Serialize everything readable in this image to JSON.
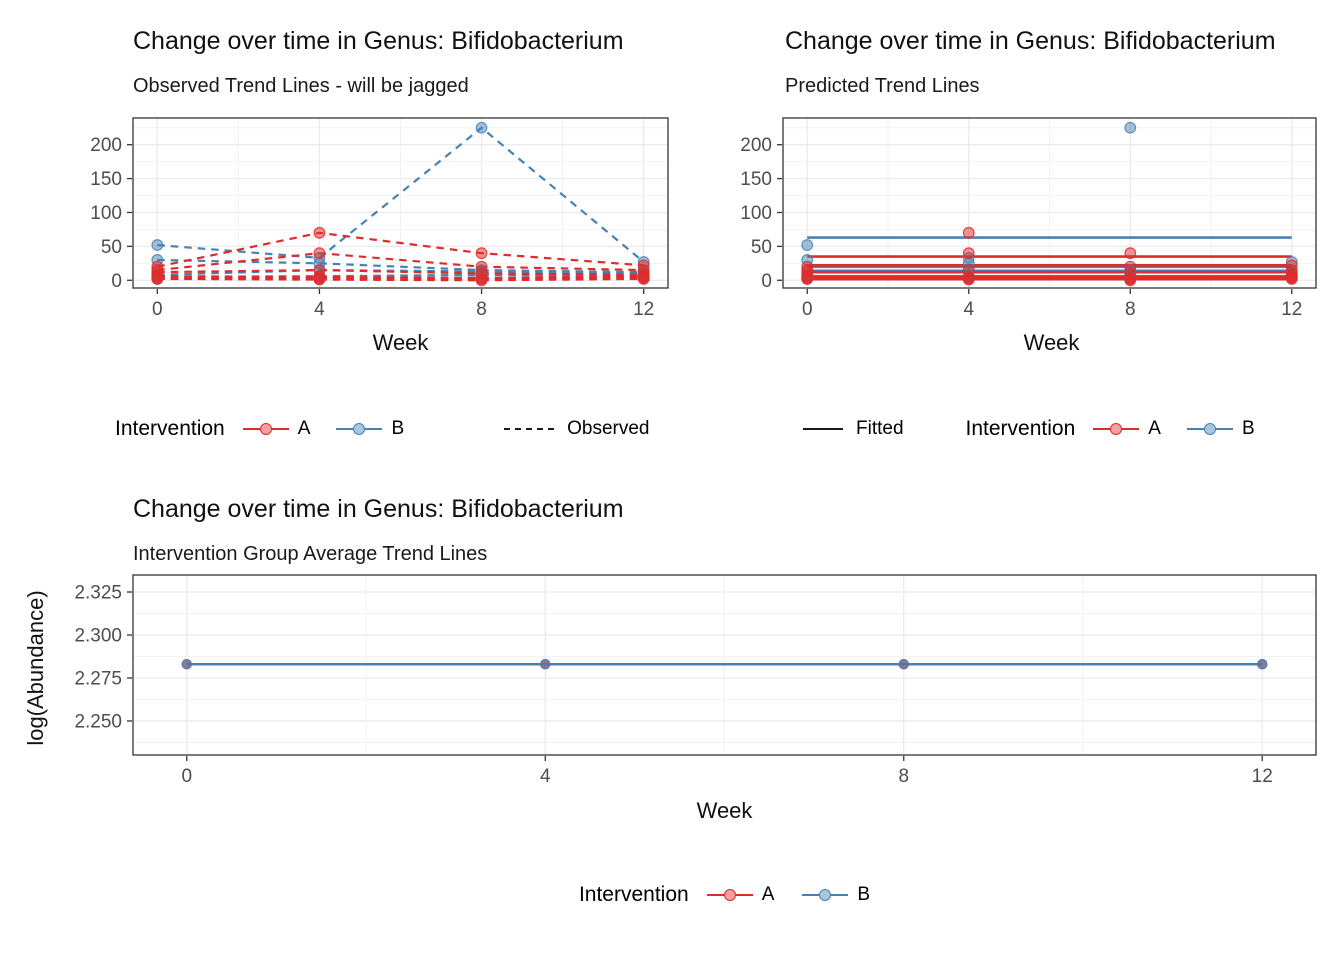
{
  "groups": {
    "A": {
      "label": "A",
      "color": "#e02b2b"
    },
    "B": {
      "label": "B",
      "color": "#4682b4"
    }
  },
  "style_colors": {
    "panel_border": "#333333",
    "grid_major": "#ebebeb",
    "grid_minor": "#f2f2f2",
    "tick_text": "#4d4d4d",
    "legend_line": "#1a1a1a"
  },
  "chart_data": [
    {
      "type": "line",
      "variant": "spaghetti-observed",
      "title": "Change over time in Genus: Bifidobacterium",
      "subtitle": "Observed Trend Lines - will be jagged",
      "xlabel": "Week",
      "legend": {
        "title": "Intervention",
        "items": [
          {
            "label": "A",
            "group": "A"
          },
          {
            "label": "B",
            "group": "B"
          }
        ],
        "linetype": {
          "label": "Observed"
        }
      },
      "axes": {
        "xlim": [
          -0.6,
          12.6
        ],
        "ylim": [
          -11.4,
          239.4
        ],
        "xticks": [
          {
            "v": 0,
            "label": "0"
          },
          {
            "v": 4,
            "label": "4"
          },
          {
            "v": 8,
            "label": "8"
          },
          {
            "v": 12,
            "label": "12"
          }
        ],
        "yticks": [
          {
            "v": 0,
            "label": "0"
          },
          {
            "v": 50,
            "label": "50"
          },
          {
            "v": 100,
            "label": "100"
          },
          {
            "v": 150,
            "label": "150"
          },
          {
            "v": 200,
            "label": "200"
          }
        ],
        "xminor": [
          2,
          6,
          10
        ],
        "yminor": [
          25,
          75,
          125,
          175,
          225
        ],
        "grid": true
      },
      "weeks": [
        0,
        4,
        8,
        12
      ],
      "series": [
        {
          "group": "B",
          "values": [
            52,
            33,
            225,
            27
          ]
        },
        {
          "group": "B",
          "values": [
            30,
            25,
            15,
            12
          ]
        },
        {
          "group": "B",
          "values": [
            8,
            15,
            13,
            10
          ]
        },
        {
          "group": "B",
          "values": [
            5,
            6,
            8,
            6
          ]
        },
        {
          "group": "B",
          "values": [
            2,
            3,
            4,
            3
          ]
        },
        {
          "group": "A",
          "values": [
            20,
            70,
            40,
            22
          ]
        },
        {
          "group": "A",
          "values": [
            15,
            40,
            20,
            15
          ]
        },
        {
          "group": "A",
          "values": [
            12,
            15,
            10,
            8
          ]
        },
        {
          "group": "A",
          "values": [
            6,
            5,
            3,
            6
          ]
        },
        {
          "group": "A",
          "values": [
            4,
            3,
            2,
            4
          ]
        },
        {
          "group": "A",
          "values": [
            2,
            1,
            0,
            2
          ]
        }
      ],
      "layout": {
        "plot": {
          "l": 78,
          "t": 13,
          "r": 613,
          "b": 183
        },
        "dash": "7.5 6",
        "point_r": 5.3
      }
    },
    {
      "type": "line",
      "variant": "fitted-horizontal",
      "title": "Change over time in Genus: Bifidobacterium",
      "subtitle": "Predicted Trend Lines",
      "xlabel": "Week",
      "legend": {
        "linetype": {
          "label": "Fitted"
        },
        "title": "Intervention",
        "items": [
          {
            "label": "A",
            "group": "A"
          },
          {
            "label": "B",
            "group": "B"
          }
        ]
      },
      "axes": {
        "xlim": [
          -0.6,
          12.6
        ],
        "ylim": [
          -11.4,
          239.4
        ],
        "xticks": [
          {
            "v": 0,
            "label": "0"
          },
          {
            "v": 4,
            "label": "4"
          },
          {
            "v": 8,
            "label": "8"
          },
          {
            "v": 12,
            "label": "12"
          }
        ],
        "yticks": [
          {
            "v": 0,
            "label": "0"
          },
          {
            "v": 50,
            "label": "50"
          },
          {
            "v": 100,
            "label": "100"
          },
          {
            "v": 150,
            "label": "150"
          },
          {
            "v": 200,
            "label": "200"
          }
        ],
        "xminor": [
          2,
          6,
          10
        ],
        "yminor": [
          25,
          75,
          125,
          175,
          225
        ],
        "grid": true
      },
      "weeks": [
        0,
        4,
        8,
        12
      ],
      "fitted": [
        {
          "group": "B",
          "value": 63
        },
        {
          "group": "B",
          "value": 20
        },
        {
          "group": "B",
          "value": 14
        },
        {
          "group": "B",
          "value": 6
        },
        {
          "group": "B",
          "value": 3
        },
        {
          "group": "A",
          "value": 35
        },
        {
          "group": "A",
          "value": 22
        },
        {
          "group": "A",
          "value": 12
        },
        {
          "group": "A",
          "value": 5
        },
        {
          "group": "A",
          "value": 3
        },
        {
          "group": "A",
          "value": 1.5
        }
      ],
      "series": [
        {
          "group": "B",
          "values": [
            52,
            33,
            225,
            27
          ]
        },
        {
          "group": "B",
          "values": [
            30,
            25,
            15,
            12
          ]
        },
        {
          "group": "B",
          "values": [
            8,
            15,
            13,
            10
          ]
        },
        {
          "group": "B",
          "values": [
            5,
            6,
            8,
            6
          ]
        },
        {
          "group": "B",
          "values": [
            2,
            3,
            4,
            3
          ]
        },
        {
          "group": "A",
          "values": [
            20,
            70,
            40,
            22
          ]
        },
        {
          "group": "A",
          "values": [
            15,
            40,
            20,
            15
          ]
        },
        {
          "group": "A",
          "values": [
            12,
            15,
            10,
            8
          ]
        },
        {
          "group": "A",
          "values": [
            6,
            5,
            3,
            6
          ]
        },
        {
          "group": "A",
          "values": [
            4,
            3,
            2,
            4
          ]
        },
        {
          "group": "A",
          "values": [
            2,
            1,
            0,
            2
          ]
        }
      ],
      "layout": {
        "plot": {
          "l": 73,
          "t": 13,
          "r": 606,
          "b": 183
        },
        "point_r": 5.3
      }
    },
    {
      "type": "line",
      "variant": "group-average-flat",
      "title": "Change over time in Genus: Bifidobacterium",
      "subtitle": "Intervention Group Average Trend Lines",
      "xlabel": "Week",
      "ylabel": "log(Abundance)",
      "legend": {
        "title": "Intervention",
        "items": [
          {
            "label": "A",
            "group": "A"
          },
          {
            "label": "B",
            "group": "B"
          }
        ]
      },
      "axes": {
        "xlim": [
          -0.6,
          12.6
        ],
        "ylim": [
          2.2302,
          2.3349
        ],
        "xticks": [
          {
            "v": 0,
            "label": "0"
          },
          {
            "v": 4,
            "label": "4"
          },
          {
            "v": 8,
            "label": "8"
          },
          {
            "v": 12,
            "label": "12"
          }
        ],
        "yticks": [
          {
            "v": 2.25,
            "label": "2.250"
          },
          {
            "v": 2.275,
            "label": "2.275"
          },
          {
            "v": 2.3,
            "label": "2.300"
          },
          {
            "v": 2.325,
            "label": "2.325"
          }
        ],
        "xminor": [
          2,
          6,
          10
        ],
        "yminor": [
          2.2375,
          2.2625,
          2.2875,
          2.3125
        ],
        "grid": true
      },
      "weeks": [
        0,
        4,
        8,
        12
      ],
      "series": [
        {
          "group": "A",
          "values": [
            2.283,
            2.283,
            2.283,
            2.283
          ]
        },
        {
          "group": "B",
          "values": [
            2.283,
            2.283,
            2.283,
            2.283
          ]
        }
      ],
      "layout": {
        "plot": {
          "l": 78,
          "t": 10,
          "r": 1261,
          "b": 190
        },
        "point_r": 4.6
      }
    }
  ]
}
